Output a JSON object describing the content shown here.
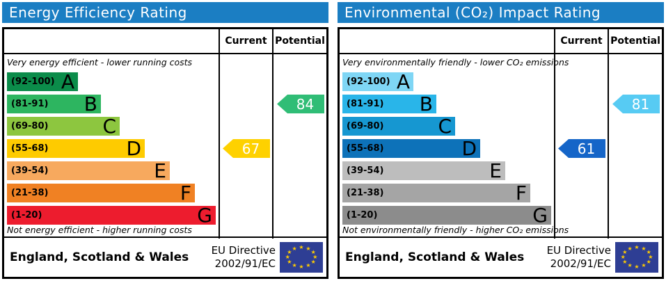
{
  "chart_data": [
    {
      "type": "bar",
      "title": "Energy Efficiency Rating",
      "orientation": "horizontal",
      "categories": [
        "A (92-100)",
        "B (81-91)",
        "C (69-80)",
        "D (55-68)",
        "E (39-54)",
        "F (21-38)",
        "G (1-20)"
      ],
      "values": [
        34,
        45,
        54,
        66,
        78,
        90,
        100
      ],
      "value_meaning": "relative bar width percent of column",
      "annotations": {
        "current": 67,
        "current_band": "D",
        "potential": 84,
        "potential_band": "B"
      },
      "xlabel": "",
      "ylabel": "",
      "legend": false,
      "grid": false
    },
    {
      "type": "bar",
      "title": "Environmental (CO₂) Impact Rating",
      "orientation": "horizontal",
      "categories": [
        "A (92-100)",
        "B (81-91)",
        "C (69-80)",
        "D (55-68)",
        "E (39-54)",
        "F (21-38)",
        "G (1-20)"
      ],
      "values": [
        34,
        45,
        54,
        66,
        78,
        90,
        100
      ],
      "value_meaning": "relative bar width percent of column",
      "annotations": {
        "current": 61,
        "current_band": "D",
        "potential": 81,
        "potential_band": "B"
      },
      "xlabel": "",
      "ylabel": "",
      "legend": false,
      "grid": false
    }
  ],
  "panels": [
    {
      "id": "energy-efficiency",
      "title": "Energy Efficiency Rating",
      "header_color": "#1b7ec3",
      "columns": {
        "current": "Current",
        "potential": "Potential"
      },
      "top_note": "Very energy efficient - lower running costs",
      "bottom_note": "Not energy efficient - higher running costs",
      "bands": [
        {
          "letter": "A",
          "range": "(92-100)",
          "color": "#0b8c4a",
          "width_pct": 34
        },
        {
          "letter": "B",
          "range": "(81-91)",
          "color": "#2db560",
          "width_pct": 45
        },
        {
          "letter": "C",
          "range": "(69-80)",
          "color": "#8dc63f",
          "width_pct": 54
        },
        {
          "letter": "D",
          "range": "(55-68)",
          "color": "#fecb00",
          "width_pct": 66
        },
        {
          "letter": "E",
          "range": "(39-54)",
          "color": "#f7a95e",
          "width_pct": 78
        },
        {
          "letter": "F",
          "range": "(21-38)",
          "color": "#f08123",
          "width_pct": 90
        },
        {
          "letter": "G",
          "range": "(1-20)",
          "color": "#ed1c2e",
          "width_pct": 100
        }
      ],
      "current": {
        "value": "67",
        "band": "D",
        "color": "#fed100"
      },
      "potential": {
        "value": "84",
        "band": "B",
        "color": "#30bd76"
      },
      "footer": {
        "region": "England, Scotland & Wales",
        "directive": [
          "EU Directive",
          "2002/91/EC"
        ],
        "flag": {
          "icon": "eu-flag",
          "background": "#2e3e94",
          "star_color": "#ffcc00",
          "stars": 12
        }
      }
    },
    {
      "id": "environmental-co2-impact",
      "title": "Environmental (CO₂) Impact Rating",
      "header_color": "#1b7ec3",
      "columns": {
        "current": "Current",
        "potential": "Potential"
      },
      "top_note": "Very environmentally friendly - lower CO₂ emissions",
      "bottom_note": "Not environmentally friendly - higher CO₂ emissions",
      "bands": [
        {
          "letter": "A",
          "range": "(92-100)",
          "color": "#7fd6f5",
          "width_pct": 34
        },
        {
          "letter": "B",
          "range": "(81-91)",
          "color": "#29b5e9",
          "width_pct": 45
        },
        {
          "letter": "C",
          "range": "(69-80)",
          "color": "#1697d1",
          "width_pct": 54
        },
        {
          "letter": "D",
          "range": "(55-68)",
          "color": "#0d72b9",
          "width_pct": 66
        },
        {
          "letter": "E",
          "range": "(39-54)",
          "color": "#bdbdbd",
          "width_pct": 78
        },
        {
          "letter": "F",
          "range": "(21-38)",
          "color": "#a5a5a5",
          "width_pct": 90
        },
        {
          "letter": "G",
          "range": "(1-20)",
          "color": "#8c8c8c",
          "width_pct": 100
        }
      ],
      "current": {
        "value": "61",
        "band": "D",
        "color": "#1565c8"
      },
      "potential": {
        "value": "81",
        "band": "B",
        "color": "#57cbf3"
      },
      "footer": {
        "region": "England, Scotland & Wales",
        "directive": [
          "EU Directive",
          "2002/91/EC"
        ],
        "flag": {
          "icon": "eu-flag",
          "background": "#2e3e94",
          "star_color": "#ffcc00",
          "stars": 12
        }
      }
    }
  ]
}
